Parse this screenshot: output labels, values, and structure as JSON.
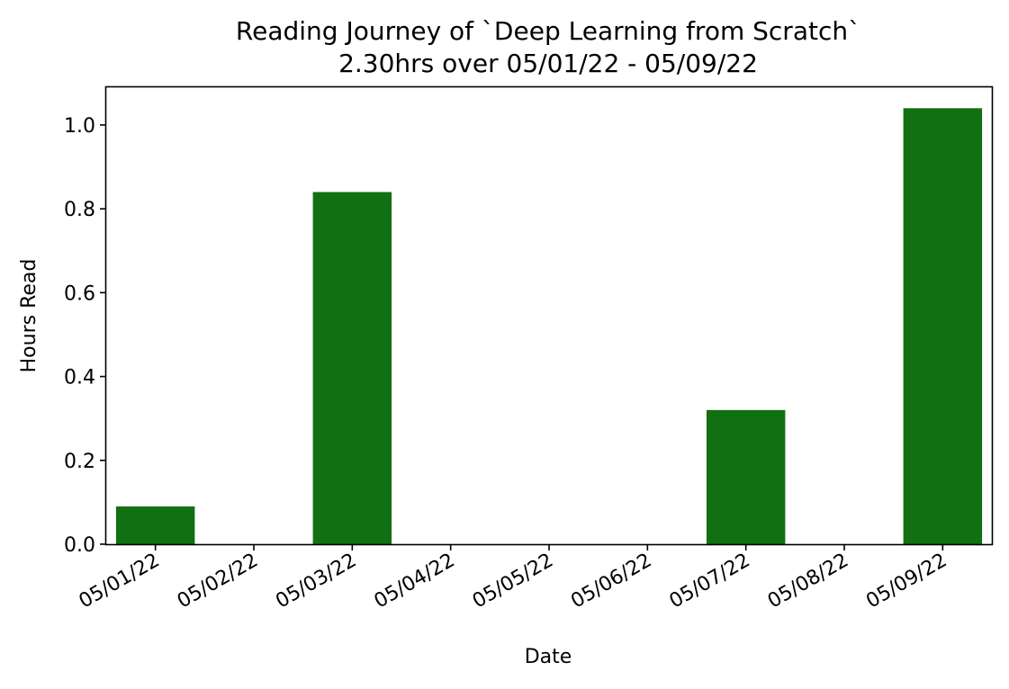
{
  "chart_data": {
    "type": "bar",
    "title": "Reading Journey of `Deep Learning from Scratch`",
    "subtitle": "2.30hrs over 05/01/22 - 05/09/22",
    "xlabel": "Date",
    "ylabel": "Hours Read",
    "categories": [
      "05/01/22",
      "05/02/22",
      "05/03/22",
      "05/04/22",
      "05/05/22",
      "05/06/22",
      "05/07/22",
      "05/08/22",
      "05/09/22"
    ],
    "values": [
      0.09,
      0.0,
      0.84,
      0.0,
      0.0,
      0.0,
      0.32,
      0.0,
      1.04
    ],
    "ylim": [
      0,
      1.09
    ],
    "yticks": [
      "0.0",
      "0.2",
      "0.4",
      "0.6",
      "0.8",
      "1.0"
    ],
    "grid": false,
    "legend": "none",
    "colors": {
      "bar": "#117011",
      "axis": "#000000",
      "background": "#ffffff"
    }
  }
}
